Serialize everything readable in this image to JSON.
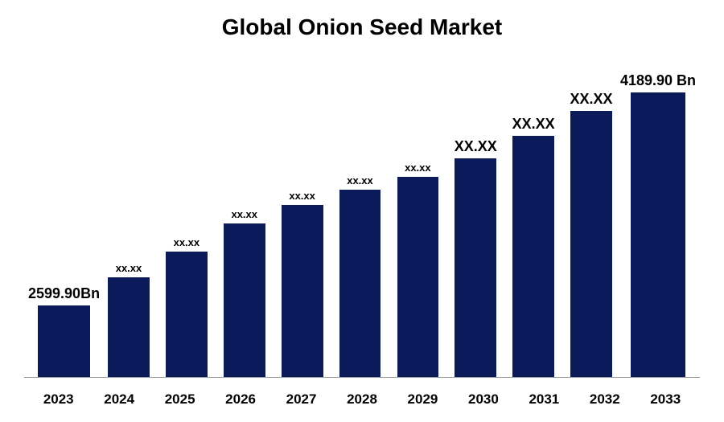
{
  "chart": {
    "type": "bar",
    "title": "Global Onion Seed Market",
    "title_fontsize": 28,
    "background_color": "#ffffff",
    "bar_color": "#0b1a5a",
    "axis_color": "#999999",
    "xlabel_color": "#000000",
    "xlabel_fontsize": 17,
    "xlabel_fontweight": "700",
    "value_label_fontsize_large": 18,
    "value_label_fontsize_small": 13,
    "categories": [
      "2023",
      "2024",
      "2025",
      "2026",
      "2027",
      "2028",
      "2029",
      "2030",
      "2031",
      "2032",
      "2033"
    ],
    "value_labels": [
      "2599.90Bn",
      "xx.xx",
      "xx.xx",
      "xx.xx",
      "xx.xx",
      "xx.xx",
      "xx.xx",
      "XX.XX",
      "XX.XX",
      "XX.XX",
      "4189.90 Bn"
    ],
    "bar_heights_pct": [
      23,
      32,
      40,
      49,
      55,
      60,
      64,
      70,
      77,
      85,
      91
    ],
    "label_font_large_flags": [
      true,
      false,
      false,
      false,
      false,
      false,
      false,
      true,
      true,
      true,
      true
    ]
  }
}
